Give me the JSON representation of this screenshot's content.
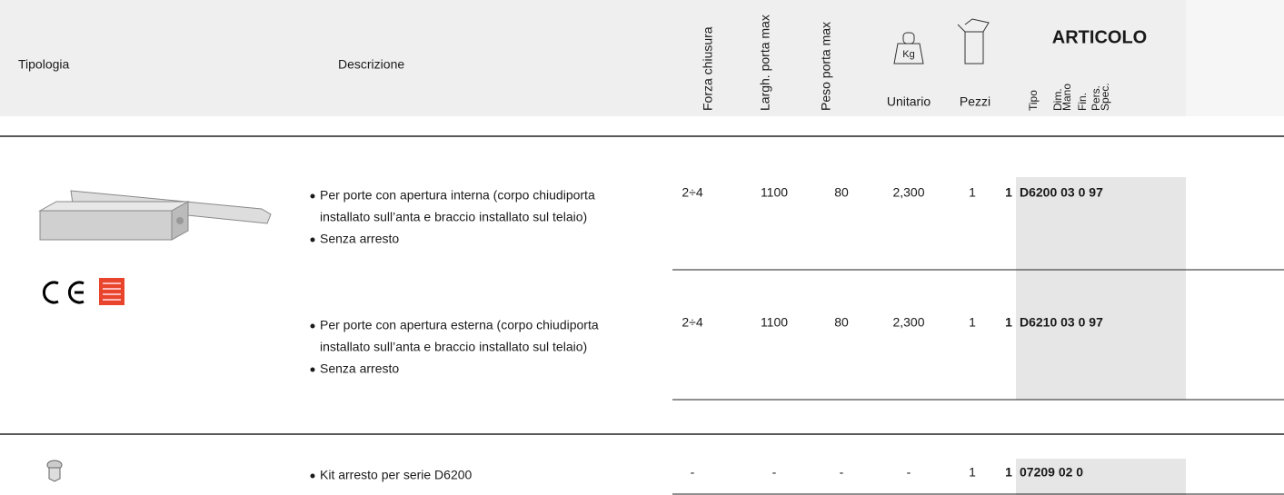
{
  "header": {
    "tipologia": "Tipologia",
    "descrizione": "Descrizione",
    "forza": "Forza chiusura",
    "larghezza": "Largh. porta max",
    "peso": "Peso porta max",
    "kg": "Kg",
    "unitario": "Unitario",
    "pezzi": "Pezzi",
    "articolo": "ARTICOLO",
    "sub": [
      "Tipo",
      "Dim.",
      "Mano",
      "Fin.",
      "Pers.",
      "Spec."
    ]
  },
  "rows": [
    {
      "bullets": [
        [
          "Per porte con apertura interna (corpo chiudiporta",
          "installato sull’anta e braccio installato sul telaio)"
        ],
        [
          "Senza arresto"
        ]
      ],
      "forza": "2÷4",
      "larghezza": "1100",
      "peso": "80",
      "unitario": "2,300",
      "pezzi": "1",
      "qty": "1",
      "code": "D6200 03 0 97"
    },
    {
      "bullets": [
        [
          "Per porte con apertura esterna (corpo chiudiporta",
          "installato sull’anta e braccio installato sul telaio)"
        ],
        [
          "Senza arresto"
        ]
      ],
      "forza": "2÷4",
      "larghezza": "1100",
      "peso": "80",
      "unitario": "2,300",
      "pezzi": "1",
      "qty": "1",
      "code": "D6210 03 0 97"
    },
    {
      "bullets": [
        [
          "Kit arresto per serie D6200"
        ]
      ],
      "forza": "-",
      "larghezza": "-",
      "peso": "-",
      "unitario": "-",
      "pezzi": "1",
      "qty": "1",
      "code": "07209 02 0"
    }
  ]
}
